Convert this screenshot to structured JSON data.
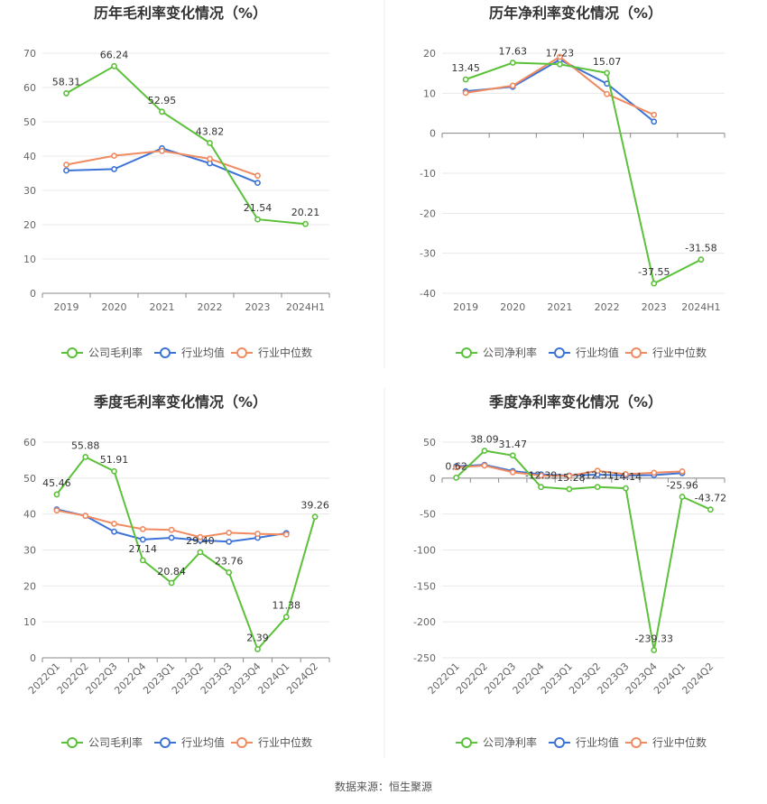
{
  "source": "数据来源：恒生聚源",
  "colors": {
    "company": "#5cc13a",
    "avg": "#3d73d7",
    "median": "#f08a60"
  },
  "legend": {
    "gross": [
      "公司毛利率",
      "行业均值",
      "行业中位数"
    ],
    "net": [
      "公司净利率",
      "行业均值",
      "行业中位数"
    ]
  },
  "chart_data": [
    {
      "type": "line",
      "title": "历年毛利率变化情况（%）",
      "categories": [
        "2019",
        "2020",
        "2021",
        "2022",
        "2023",
        "2024H1"
      ],
      "ylim": [
        0,
        70
      ],
      "yticks": [
        0,
        10,
        20,
        30,
        40,
        50,
        60,
        70
      ],
      "series": [
        {
          "name": "公司毛利率",
          "key": "company",
          "values": [
            58.31,
            66.24,
            52.95,
            43.82,
            21.54,
            20.21
          ],
          "labels": [
            "58.31",
            "66.24",
            "52.95",
            "43.82",
            "21.54",
            "20.21"
          ]
        },
        {
          "name": "行业均值",
          "key": "avg",
          "values": [
            35.8,
            36.2,
            42.3,
            37.9,
            32.2,
            null
          ]
        },
        {
          "name": "行业中位数",
          "key": "median",
          "values": [
            37.5,
            40.1,
            41.5,
            39.2,
            34.3,
            null
          ]
        }
      ]
    },
    {
      "type": "line",
      "title": "历年净利率变化情况（%）",
      "categories": [
        "2019",
        "2020",
        "2021",
        "2022",
        "2023",
        "2024H1"
      ],
      "ylim": [
        -40,
        20
      ],
      "yticks": [
        -40,
        -30,
        -20,
        -10,
        0,
        10,
        20
      ],
      "series": [
        {
          "name": "公司净利率",
          "key": "company",
          "values": [
            13.45,
            17.63,
            17.23,
            15.07,
            -37.55,
            -31.58
          ],
          "labels": [
            "13.45",
            "17.63",
            "17.23",
            "15.07",
            "-37.55",
            "-31.58"
          ]
        },
        {
          "name": "行业均值",
          "key": "avg",
          "values": [
            10.5,
            11.6,
            18.4,
            12.4,
            2.9,
            null
          ]
        },
        {
          "name": "行业中位数",
          "key": "median",
          "values": [
            10.1,
            11.9,
            19.1,
            9.8,
            4.6,
            null
          ]
        }
      ]
    },
    {
      "type": "line",
      "title": "季度毛利率变化情况（%）",
      "categories": [
        "2022Q1",
        "2022Q2",
        "2022Q3",
        "2022Q4",
        "2023Q1",
        "2023Q2",
        "2023Q3",
        "2023Q4",
        "2024Q1",
        "2024Q2"
      ],
      "ylim": [
        0,
        60
      ],
      "yticks": [
        0,
        10,
        20,
        30,
        40,
        50,
        60
      ],
      "series": [
        {
          "name": "公司毛利率",
          "key": "company",
          "values": [
            45.46,
            55.88,
            51.91,
            27.14,
            20.84,
            29.4,
            23.76,
            2.39,
            11.38,
            39.26
          ],
          "labels": [
            "45.46",
            "55.88",
            "51.91",
            "27.14",
            "20.84",
            "29.40",
            "23.76",
            "2.39",
            "11.38",
            "39.26"
          ]
        },
        {
          "name": "行业均值",
          "key": "avg",
          "values": [
            41.3,
            39.5,
            35.1,
            32.9,
            33.4,
            32.7,
            32.3,
            33.4,
            34.7,
            null
          ]
        },
        {
          "name": "行业中位数",
          "key": "median",
          "values": [
            41.0,
            39.5,
            37.3,
            35.8,
            35.6,
            33.6,
            34.8,
            34.5,
            34.3,
            null
          ]
        }
      ]
    },
    {
      "type": "line",
      "title": "季度净利率变化情况（%）",
      "categories": [
        "2022Q1",
        "2022Q2",
        "2022Q3",
        "2022Q4",
        "2023Q1",
        "2023Q2",
        "2023Q3",
        "2023Q4",
        "2024Q1",
        "2024Q2"
      ],
      "ylim": [
        -250,
        50
      ],
      "yticks": [
        -250,
        -200,
        -150,
        -100,
        -50,
        0,
        50
      ],
      "series": [
        {
          "name": "公司净利率",
          "key": "company",
          "values": [
            0.62,
            38.09,
            31.47,
            -12.39,
            -15.28,
            -12.31,
            -14.14,
            -239.33,
            -25.96,
            -43.72
          ],
          "labels": [
            "0.62",
            "38.09",
            "31.47",
            "-12.39",
            "-15.28",
            "-12.31",
            "-14.14",
            "-239.33",
            "-25.96",
            "-43.72"
          ]
        },
        {
          "name": "行业均值",
          "key": "avg",
          "values": [
            16.5,
            18.5,
            9.8,
            5.2,
            3.6,
            4.8,
            3.6,
            4.2,
            6.9,
            null
          ]
        },
        {
          "name": "行业中位数",
          "key": "median",
          "values": [
            15.0,
            17.4,
            8.1,
            3.6,
            3.0,
            10.2,
            5.4,
            7.4,
            9.3,
            null
          ]
        }
      ]
    }
  ]
}
